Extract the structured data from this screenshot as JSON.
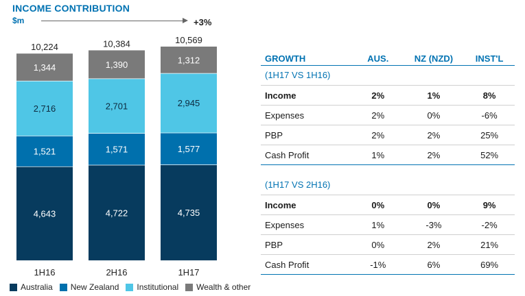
{
  "header": {
    "title": "INCOME CONTRIBUTION",
    "unit": "$m",
    "growth": "+3%"
  },
  "colors": {
    "australia": "#073b5e",
    "new_zealand": "#0070ad",
    "institutional": "#4fc6e6",
    "wealth": "#7a7a7a",
    "accent": "#0072b2"
  },
  "chart_data": {
    "type": "bar",
    "stacked": true,
    "categories": [
      "1H16",
      "2H16",
      "1H17"
    ],
    "series": [
      {
        "name": "Australia",
        "values": [
          4643,
          4722,
          4735
        ],
        "color": "#073b5e"
      },
      {
        "name": "New Zealand",
        "values": [
          1521,
          1571,
          1577
        ],
        "color": "#0070ad"
      },
      {
        "name": "Institutional",
        "values": [
          2716,
          2701,
          2945
        ],
        "color": "#4fc6e6"
      },
      {
        "name": "Wealth & other",
        "values": [
          1344,
          1390,
          1312
        ],
        "color": "#7a7a7a"
      }
    ],
    "totals": [
      10224,
      10384,
      10569
    ],
    "title": "INCOME CONTRIBUTION",
    "ylabel": "$m",
    "ylim": [
      0,
      10569
    ],
    "legend": "bottom",
    "grid": false
  },
  "legend": [
    {
      "label": "Australia",
      "color": "#073b5e"
    },
    {
      "label": "New Zealand",
      "color": "#0070ad"
    },
    {
      "label": "Institutional",
      "color": "#4fc6e6"
    },
    {
      "label": "Wealth & other",
      "color": "#7a7a7a"
    }
  ],
  "table": {
    "headers": [
      "GROWTH",
      "AUS.",
      "NZ (NZD)",
      "INST'L"
    ],
    "sections": [
      {
        "title": "(1H17 VS 1H16)",
        "rows": [
          {
            "label": "Income",
            "aus": "2%",
            "nz": "1%",
            "inst": "8%",
            "bold": true
          },
          {
            "label": "Expenses",
            "aus": "2%",
            "nz": "0%",
            "inst": "-6%",
            "bold": false
          },
          {
            "label": "PBP",
            "aus": "2%",
            "nz": "2%",
            "inst": "25%",
            "bold": false
          },
          {
            "label": "Cash Profit",
            "aus": "1%",
            "nz": "2%",
            "inst": "52%",
            "bold": false
          }
        ]
      },
      {
        "title": "(1H17 VS 2H16)",
        "rows": [
          {
            "label": "Income",
            "aus": "0%",
            "nz": "0%",
            "inst": "9%",
            "bold": true
          },
          {
            "label": "Expenses",
            "aus": "1%",
            "nz": "-3%",
            "inst": "-2%",
            "bold": false
          },
          {
            "label": "PBP",
            "aus": "0%",
            "nz": "2%",
            "inst": "21%",
            "bold": false
          },
          {
            "label": "Cash Profit",
            "aus": "-1%",
            "nz": "6%",
            "inst": "69%",
            "bold": false
          }
        ]
      }
    ]
  }
}
